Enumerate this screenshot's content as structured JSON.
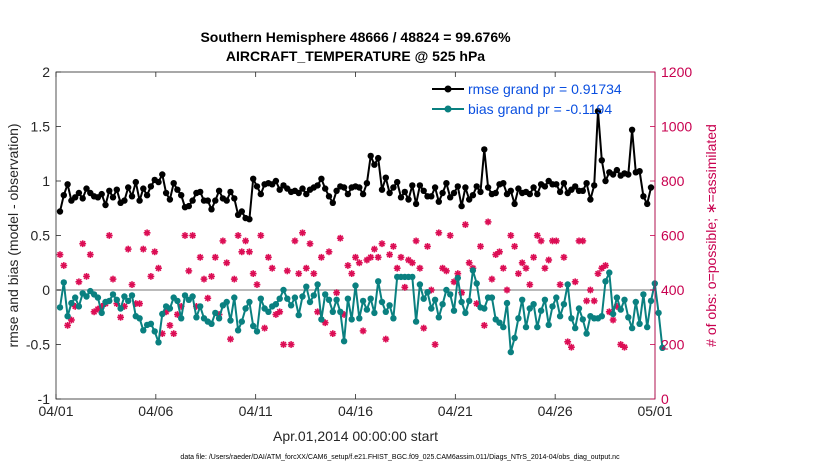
{
  "chart_data": {
    "type": "line",
    "title": [
      "Southern Hemisphere 48666 / 48824 = 99.676%",
      "AIRCRAFT_TEMPERATURE @ 525 hPa"
    ],
    "xlabel": "Apr.01,2014 00:00:00 start",
    "ylabel_left": "rmse and bias (model - observation)",
    "ylabel_right": "# of obs: o=possible; ∗=assimilated",
    "ylim_left": [
      -1,
      2
    ],
    "ylim_right": [
      0,
      1200
    ],
    "yticks_left": [
      "-1",
      "-0.5",
      "0",
      "0.5",
      "1",
      "1.5",
      "2"
    ],
    "yticks_right": [
      "0",
      "200",
      "400",
      "600",
      "800",
      "1000",
      "1200"
    ],
    "xticks": [
      "04/01",
      "04/06",
      "04/11",
      "04/16",
      "04/21",
      "04/26",
      "05/01"
    ],
    "footnote": "data file: /Users/raeder/DAI/ATM_forcXX/CAM6_setup/f.e21.FHIST_BGC.f09_025.CAM6assim.011/Diags_NTrS_2014-04/obs_diag_output.nc",
    "legend": [
      {
        "label": "rmse grand pr = 0.91734",
        "color": "#000000"
      },
      {
        "label": "bias grand pr = -0.1194",
        "color": "#0a8080"
      }
    ],
    "colors": {
      "rmse": "#000000",
      "bias": "#0a8080",
      "obs": "#dc0e55",
      "zero": "#bbbbbb"
    },
    "series": [
      {
        "name": "rmse",
        "axis": "left",
        "values": [
          0.72,
          0.87,
          0.97,
          0.82,
          0.85,
          0.89,
          0.84,
          0.93,
          0.89,
          0.86,
          0.85,
          0.88,
          0.78,
          0.91,
          0.85,
          0.92,
          0.8,
          0.82,
          0.94,
          0.86,
          0.99,
          0.82,
          0.93,
          0.87,
          0.95,
          1.01,
          0.99,
          1.06,
          0.89,
          0.83,
          0.98,
          0.92,
          0.87,
          0.76,
          0.77,
          0.82,
          0.89,
          0.9,
          0.82,
          0.82,
          0.74,
          0.82,
          0.91,
          0.84,
          0.82,
          0.9,
          0.84,
          0.69,
          0.72,
          0.66,
          0.65,
          1.02,
          0.95,
          0.88,
          0.97,
          0.98,
          0.97,
          1.0,
          0.92,
          0.96,
          0.93,
          0.9,
          0.91,
          0.89,
          0.93,
          0.88,
          0.92,
          0.94,
          0.96,
          1.02,
          0.93,
          0.86,
          0.8,
          0.91,
          0.95,
          0.94,
          0.88,
          0.94,
          0.95,
          0.94,
          0.88,
          0.98,
          1.23,
          1.15,
          1.21,
          0.92,
          1.03,
          0.89,
          0.94,
          0.99,
          0.85,
          0.9,
          0.83,
          0.96,
          0.79,
          0.96,
          0.91,
          0.86,
          0.86,
          0.94,
          0.81,
          0.89,
          0.98,
          0.85,
          0.89,
          0.95,
          0.77,
          0.94,
          0.83,
          0.87,
          0.95,
          0.9,
          1.29,
          0.94,
          0.88,
          0.89,
          0.97,
          0.98,
          0.88,
          0.91,
          0.79,
          0.93,
          0.89,
          0.9,
          0.88,
          0.94,
          0.88,
          0.97,
          0.95,
          1.0,
          0.97,
          0.97,
          0.9,
          0.98,
          0.89,
          0.92,
          0.95,
          0.91,
          0.91,
          0.98,
          0.83,
          0.96,
          1.64,
          1.19,
          1.0,
          1.08,
          1.06,
          1.1,
          1.05,
          1.07,
          1.06,
          1.47,
          1.08,
          1.09,
          0.86,
          0.79,
          0.94
        ]
      },
      {
        "name": "bias",
        "axis": "left",
        "values": [
          -0.16,
          0.07,
          -0.24,
          -0.12,
          -0.07,
          -0.15,
          -0.03,
          -0.06,
          -0.01,
          -0.04,
          -0.07,
          -0.21,
          -0.11,
          -0.1,
          -0.04,
          -0.09,
          -0.17,
          -0.06,
          -0.1,
          -0.05,
          -0.24,
          -0.26,
          -0.37,
          -0.32,
          -0.31,
          -0.38,
          -0.48,
          -0.22,
          -0.15,
          -0.17,
          -0.07,
          -0.1,
          -0.26,
          -0.05,
          -0.09,
          -0.06,
          -0.25,
          -0.15,
          -0.26,
          -0.29,
          -0.31,
          -0.21,
          -0.26,
          -0.14,
          -0.11,
          -0.28,
          -0.07,
          -0.37,
          -0.29,
          -0.17,
          -0.11,
          -0.33,
          -0.38,
          -0.08,
          -0.17,
          -0.2,
          -0.15,
          -0.13,
          -0.08,
          0.0,
          -0.08,
          -0.14,
          -0.07,
          -0.23,
          -0.06,
          0.03,
          -0.11,
          -0.05,
          0.05,
          -0.27,
          -0.04,
          -0.09,
          -0.2,
          -0.09,
          -0.2,
          -0.47,
          -0.08,
          -0.27,
          0.04,
          -0.26,
          -0.1,
          -0.18,
          -0.08,
          -0.21,
          0.08,
          -0.11,
          -0.2,
          -0.14,
          -0.26,
          0.12,
          0.12,
          0.12,
          0.12,
          0.12,
          -0.29,
          0.05,
          -0.08,
          -0.02,
          -0.17,
          -0.09,
          -0.25,
          -0.13,
          0.0,
          -0.04,
          -0.19,
          0.11,
          -0.11,
          -0.21,
          -0.1,
          0.18,
          0.06,
          -0.16,
          -0.17,
          -0.07,
          -0.07,
          -0.27,
          -0.3,
          -0.34,
          -0.12,
          -0.57,
          -0.44,
          -0.26,
          -0.09,
          -0.34,
          -0.17,
          -0.13,
          -0.34,
          -0.19,
          -0.09,
          -0.32,
          -0.15,
          -0.07,
          -0.24,
          -0.13,
          0.05,
          -0.26,
          -0.35,
          -0.17,
          -0.27,
          -0.4,
          -0.24,
          -0.26,
          -0.26,
          -0.24,
          0.08,
          0.16,
          -0.22,
          -0.07,
          -0.18,
          -0.09,
          -0.25,
          -0.35,
          -0.11,
          -0.31,
          -0.04,
          -0.34,
          -0.1,
          0.06,
          -0.21,
          -0.53
        ]
      },
      {
        "name": "assimilated",
        "axis": "right",
        "values": [
          530,
          490,
          270,
          290,
          340,
          430,
          570,
          450,
          530,
          320,
          330,
          340,
          350,
          600,
          440,
          350,
          300,
          340,
          550,
          420,
          350,
          350,
          550,
          610,
          450,
          540,
          480,
          240,
          320,
          270,
          240,
          310,
          340,
          600,
          470,
          600,
          340,
          520,
          440,
          370,
          450,
          520,
          310,
          580,
          500,
          220,
          440,
          600,
          540,
          580,
          540,
          460,
          420,
          600,
          260,
          520,
          480,
          310,
          320,
          200,
          470,
          200,
          580,
          460,
          610,
          480,
          570,
          460,
          320,
          520,
          280,
          540,
          240,
          390,
          590,
          310,
          490,
          460,
          520,
          500,
          250,
          510,
          520,
          550,
          520,
          570,
          220,
          530,
          560,
          480,
          520,
          410,
          510,
          500,
          580,
          480,
          260,
          560,
          400,
          200,
          610,
          480,
          470,
          600,
          430,
          460,
          390,
          640,
          500,
          480,
          350,
          560,
          270,
          650,
          440,
          530,
          540,
          480,
          400,
          600,
          560,
          460,
          500,
          480,
          420,
          520,
          600,
          580,
          480,
          510,
          580,
          580,
          420,
          520,
          210,
          190,
          430,
          580,
          580,
          360,
          400,
          360,
          460,
          480,
          490,
          320,
          290,
          340,
          200,
          190
        ]
      }
    ]
  }
}
